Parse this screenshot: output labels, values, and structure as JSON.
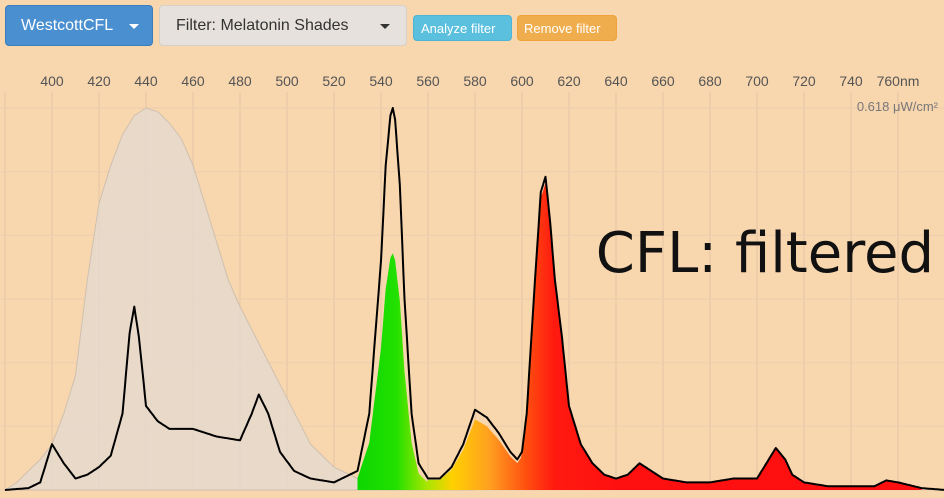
{
  "toolbar": {
    "source_label": "WestcottCFL",
    "filter_label": "Filter: Melatonin Shades",
    "analyze_label": "Analyze filter",
    "remove_label": "Remove filter"
  },
  "colors": {
    "background": "#f8d6ae",
    "source_button": "#4a8fd0",
    "filter_button": "#e6e1dc",
    "analyze_button": "#5bc0de",
    "remove_button": "#f0ad4e",
    "filter_curve": "#e3d6c8",
    "spectrum_line": "#000000"
  },
  "chart_data": {
    "type": "area",
    "x_tick_labels": [
      "400",
      "420",
      "440",
      "460",
      "480",
      "500",
      "520",
      "540",
      "560",
      "580",
      "600",
      "620",
      "640",
      "660",
      "680",
      "700",
      "720",
      "740",
      "760nm"
    ],
    "x_range": [
      380,
      780
    ],
    "grid": true,
    "y_max_label": "0.618 μW/cm²",
    "annotation": "CFL: filtered",
    "series": [
      {
        "role": "filter transmission",
        "x": [
          380,
          385,
          390,
          395,
          400,
          405,
          410,
          412,
          415,
          420,
          425,
          430,
          435,
          440,
          445,
          450,
          455,
          460,
          465,
          470,
          475,
          480,
          485,
          490,
          495,
          500,
          505,
          510,
          520,
          530,
          540,
          550,
          560,
          570,
          580
        ],
        "y": [
          0,
          0.02,
          0.05,
          0.08,
          0.12,
          0.2,
          0.3,
          0.4,
          0.55,
          0.75,
          0.85,
          0.93,
          0.98,
          1.0,
          0.99,
          0.96,
          0.92,
          0.85,
          0.75,
          0.65,
          0.55,
          0.48,
          0.42,
          0.36,
          0.3,
          0.24,
          0.18,
          0.12,
          0.06,
          0.03,
          0.015,
          0.008,
          0.004,
          0.002,
          0.0
        ]
      },
      {
        "role": "source spectrum",
        "x": [
          380,
          390,
          395,
          400,
          405,
          410,
          415,
          420,
          425,
          430,
          433,
          435,
          437,
          440,
          445,
          450,
          455,
          460,
          470,
          480,
          485,
          488,
          492,
          497,
          503,
          510,
          520,
          530,
          535,
          540,
          542,
          544,
          545,
          546,
          548,
          550,
          553,
          556,
          560,
          565,
          570,
          575,
          580,
          585,
          590,
          595,
          598,
          600,
          602,
          605,
          608,
          610,
          611,
          612,
          614,
          617,
          620,
          625,
          630,
          635,
          640,
          645,
          650,
          655,
          660,
          670,
          680,
          690,
          700,
          705,
          708,
          712,
          715,
          720,
          730,
          740,
          750,
          755,
          760,
          770,
          780
        ],
        "y": [
          0,
          0.005,
          0.02,
          0.12,
          0.07,
          0.03,
          0.04,
          0.06,
          0.09,
          0.2,
          0.41,
          0.48,
          0.4,
          0.22,
          0.18,
          0.16,
          0.16,
          0.16,
          0.14,
          0.13,
          0.2,
          0.25,
          0.2,
          0.1,
          0.05,
          0.03,
          0.02,
          0.05,
          0.2,
          0.6,
          0.85,
          0.98,
          1.0,
          0.97,
          0.8,
          0.5,
          0.2,
          0.07,
          0.03,
          0.03,
          0.06,
          0.12,
          0.21,
          0.19,
          0.15,
          0.1,
          0.08,
          0.1,
          0.2,
          0.5,
          0.78,
          0.82,
          0.76,
          0.7,
          0.55,
          0.4,
          0.22,
          0.12,
          0.07,
          0.04,
          0.03,
          0.04,
          0.07,
          0.05,
          0.03,
          0.02,
          0.02,
          0.03,
          0.03,
          0.08,
          0.11,
          0.08,
          0.04,
          0.02,
          0.01,
          0.01,
          0.01,
          0.025,
          0.02,
          0.005,
          0
        ]
      }
    ]
  }
}
